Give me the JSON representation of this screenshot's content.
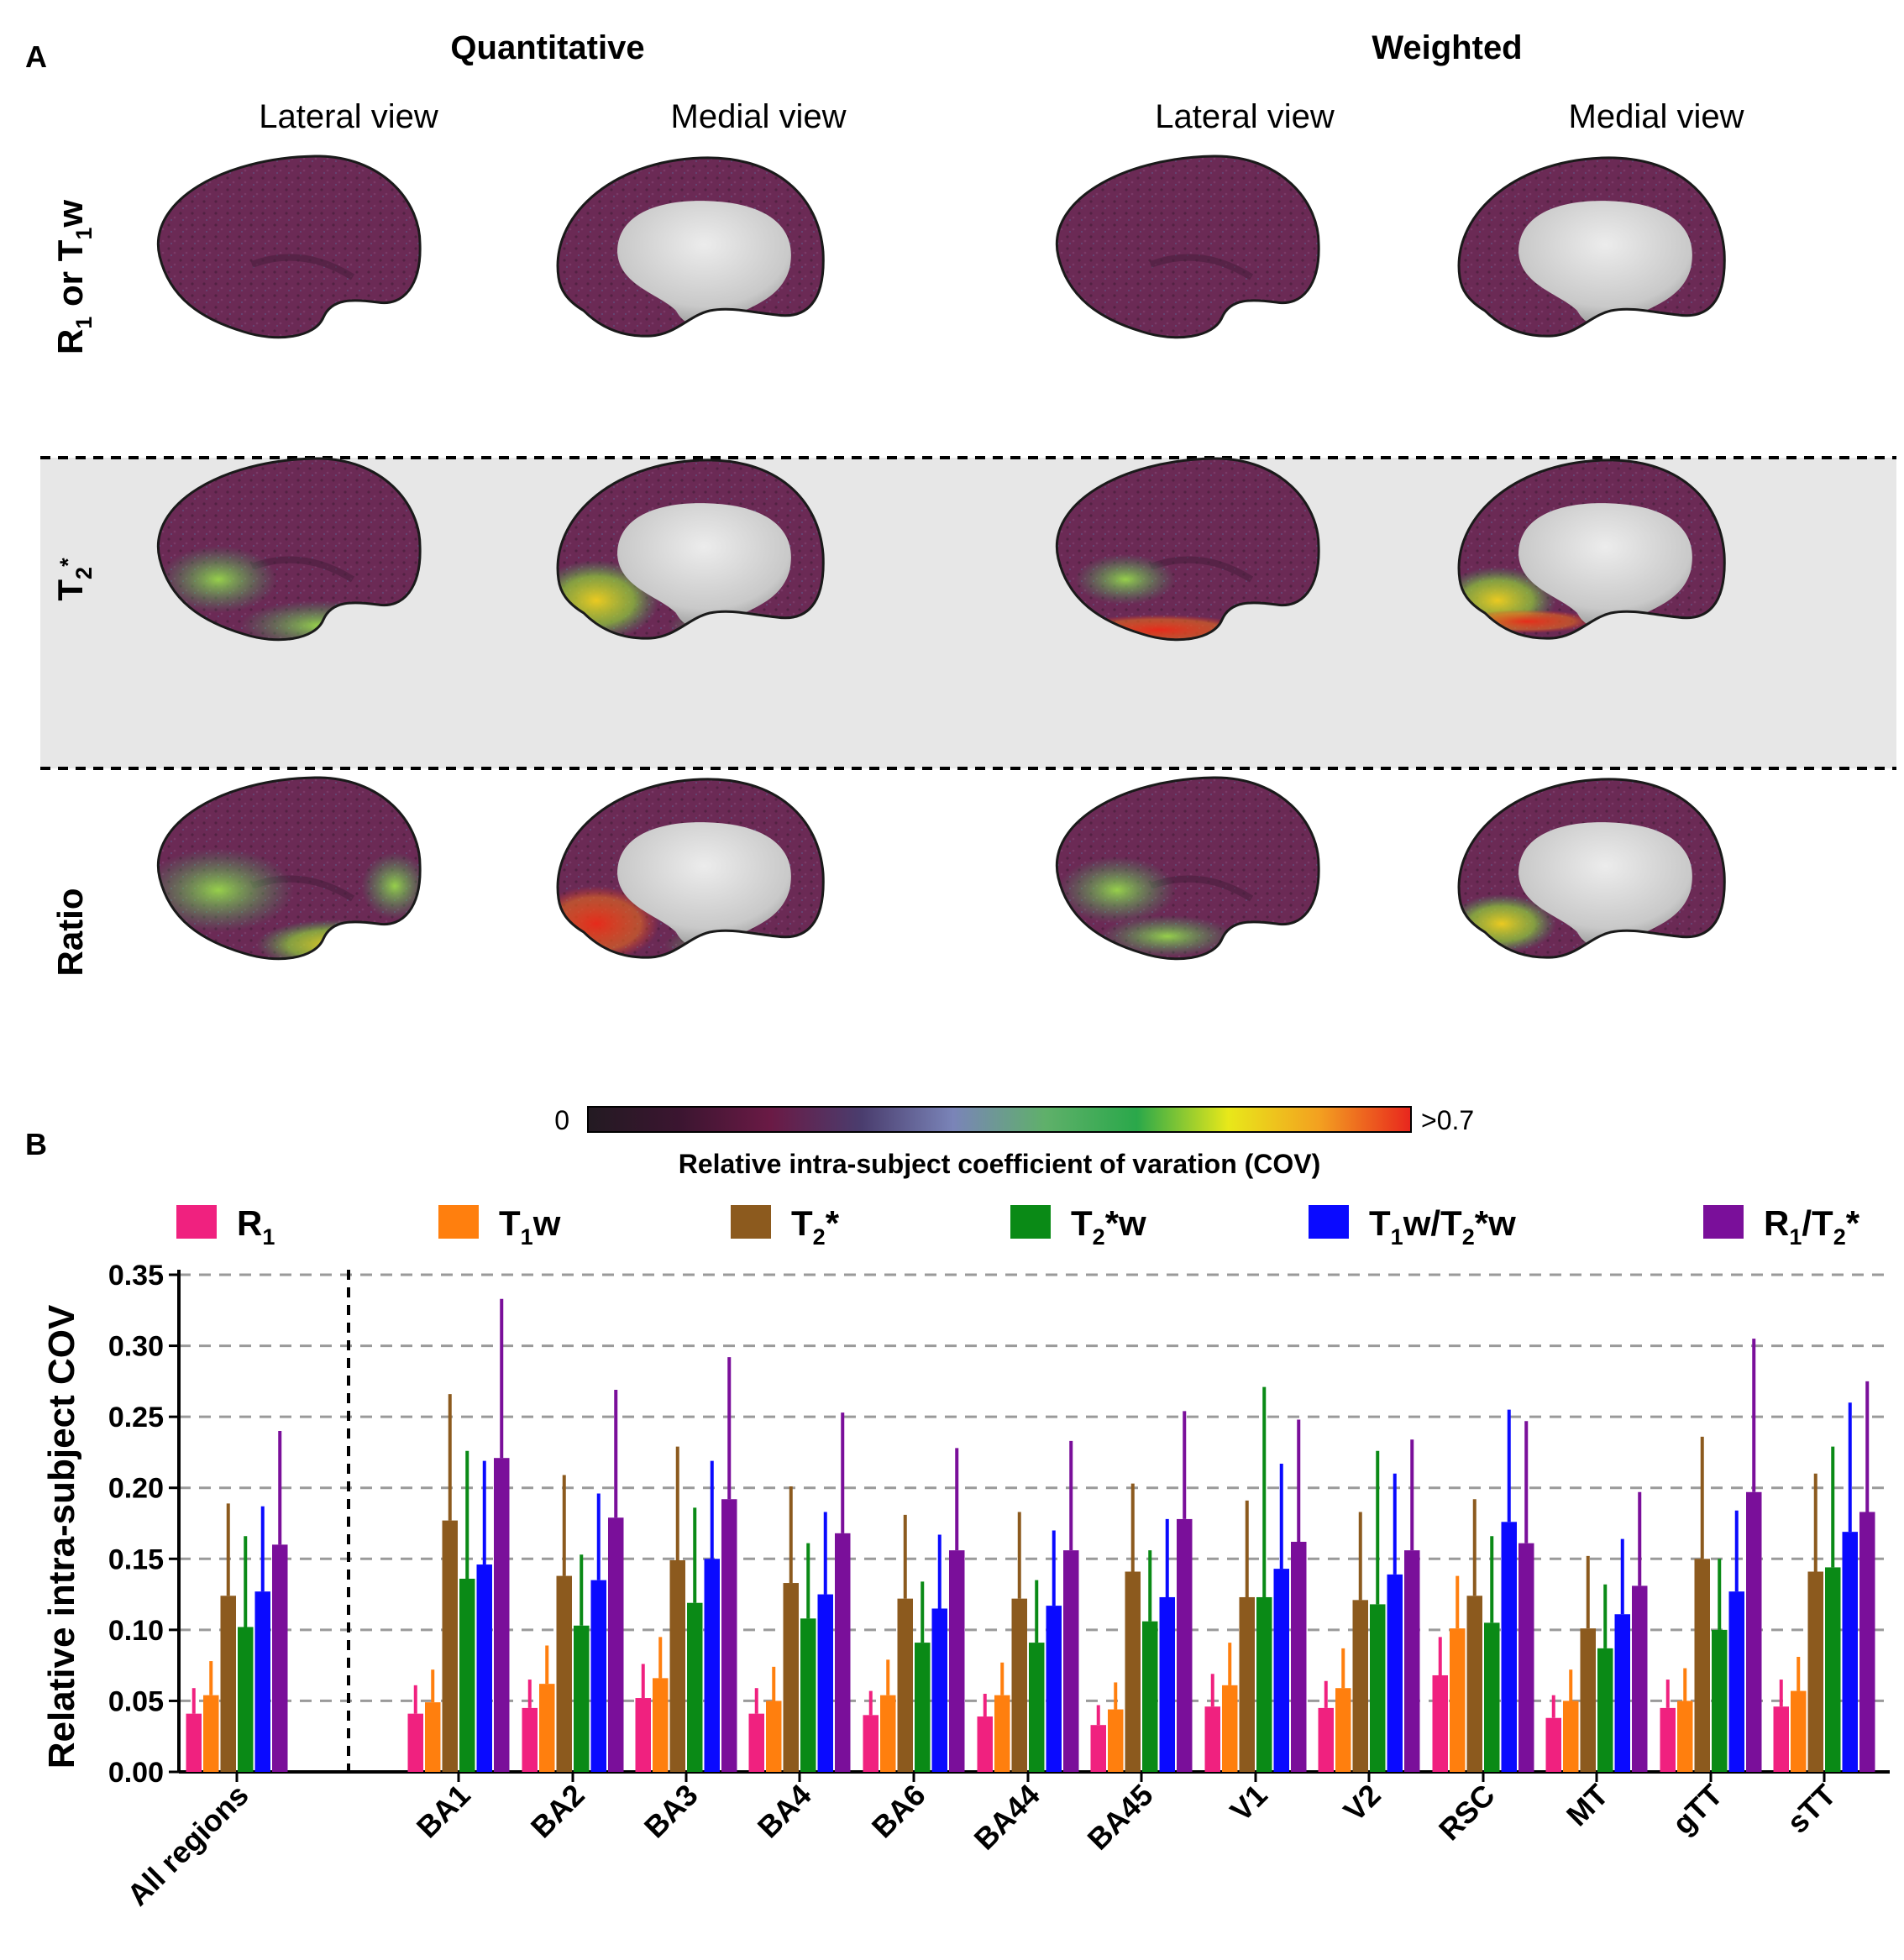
{
  "panel_a": {
    "label": "A",
    "groups": [
      "Quantitative",
      "Weighted"
    ],
    "views": [
      "Lateral view",
      "Medial view",
      "Lateral view",
      "Medial view"
    ],
    "rows": [
      {
        "name": "R1 or T1w",
        "parts": [
          [
            "R",
            "b"
          ],
          [
            "1",
            "sub"
          ],
          [
            " or T",
            "b"
          ],
          [
            "1",
            "sub"
          ],
          [
            "w",
            "b"
          ]
        ]
      },
      {
        "name": "T2*",
        "parts": [
          [
            "T",
            "b"
          ],
          [
            "2",
            "sub"
          ],
          [
            "*",
            "sup"
          ]
        ]
      },
      {
        "name": "Ratio",
        "parts": [
          [
            "Ratio",
            "b"
          ]
        ]
      }
    ],
    "colorbar": {
      "min_label": "0",
      "max_label": ">0.7",
      "title": "Relative intra-subject coefficient of varation (COV)",
      "stops": [
        "#231a22",
        "#3b1530",
        "#6a1a45",
        "#4a3d6e",
        "#7a84b8",
        "#5fb06a",
        "#2aa84a",
        "#e8e81a",
        "#f3a020",
        "#e8261e"
      ]
    },
    "surface_colors": {
      "base": "#6b2a55",
      "dark": "#4a1f3e",
      "inner": "#d6d6d6",
      "highlight_green": "#7cc94c",
      "highlight_yellow": "#e8dc2a",
      "highlight_red": "#e8301e"
    }
  },
  "chart_data": {
    "type": "bar",
    "panel_label": "B",
    "title": "",
    "xlabel": "",
    "ylabel": "Relative intra-subject COV",
    "ylim": [
      0,
      0.35
    ],
    "yticks": [
      "0.00",
      "0.05",
      "0.10",
      "0.15",
      "0.20",
      "0.25",
      "0.30",
      "0.35"
    ],
    "grid": "horizontal dashed",
    "legend_position": "top",
    "categories": [
      "All regions",
      "BA1",
      "BA2",
      "BA3",
      "BA4",
      "BA6",
      "BA44",
      "BA45",
      "V1",
      "V2",
      "RSC",
      "MT",
      "gTT",
      "sTT"
    ],
    "series": [
      {
        "name": "R1",
        "legend": [
          [
            "R",
            "n"
          ],
          [
            "1",
            "sub"
          ]
        ],
        "color": "#f0217f",
        "values": [
          0.041,
          0.041,
          0.045,
          0.052,
          0.041,
          0.04,
          0.039,
          0.033,
          0.046,
          0.045,
          0.068,
          0.038,
          0.045,
          0.046
        ],
        "errors": [
          0.059,
          0.061,
          0.065,
          0.076,
          0.059,
          0.057,
          0.055,
          0.047,
          0.069,
          0.064,
          0.095,
          0.054,
          0.065,
          0.065
        ]
      },
      {
        "name": "T1w",
        "legend": [
          [
            "T",
            "n"
          ],
          [
            "1",
            "sub"
          ],
          [
            "w",
            "n"
          ]
        ],
        "color": "#ff7f0e",
        "values": [
          0.054,
          0.049,
          0.062,
          0.066,
          0.05,
          0.054,
          0.054,
          0.044,
          0.061,
          0.059,
          0.101,
          0.05,
          0.05,
          0.057
        ],
        "errors": [
          0.078,
          0.072,
          0.089,
          0.095,
          0.074,
          0.079,
          0.077,
          0.063,
          0.091,
          0.087,
          0.138,
          0.072,
          0.073,
          0.081
        ]
      },
      {
        "name": "T2*",
        "legend": [
          [
            "T",
            "n"
          ],
          [
            "2",
            "sub"
          ],
          [
            "*",
            "n"
          ]
        ],
        "color": "#8c5a1e",
        "values": [
          0.124,
          0.177,
          0.138,
          0.149,
          0.133,
          0.122,
          0.122,
          0.141,
          0.123,
          0.121,
          0.124,
          0.101,
          0.15,
          0.141
        ],
        "errors": [
          0.189,
          0.266,
          0.209,
          0.229,
          0.201,
          0.181,
          0.183,
          0.203,
          0.191,
          0.183,
          0.192,
          0.152,
          0.236,
          0.21
        ]
      },
      {
        "name": "T2*w",
        "legend": [
          [
            "T",
            "n"
          ],
          [
            "2",
            "sub"
          ],
          [
            "*w",
            "n"
          ]
        ],
        "color": "#0a8a16",
        "values": [
          0.102,
          0.136,
          0.103,
          0.119,
          0.108,
          0.091,
          0.091,
          0.106,
          0.123,
          0.118,
          0.105,
          0.087,
          0.1,
          0.144
        ],
        "errors": [
          0.166,
          0.226,
          0.153,
          0.186,
          0.161,
          0.134,
          0.135,
          0.156,
          0.271,
          0.226,
          0.166,
          0.132,
          0.15,
          0.229
        ]
      },
      {
        "name": "T1w/T2*w",
        "legend": [
          [
            "T",
            "n"
          ],
          [
            "1",
            "sub"
          ],
          [
            "w/T",
            "n"
          ],
          [
            "2",
            "sub"
          ],
          [
            "*w",
            "n"
          ]
        ],
        "color": "#0a0aff",
        "values": [
          0.127,
          0.146,
          0.135,
          0.15,
          0.125,
          0.115,
          0.117,
          0.123,
          0.143,
          0.139,
          0.176,
          0.111,
          0.127,
          0.169
        ],
        "errors": [
          0.187,
          0.219,
          0.196,
          0.219,
          0.183,
          0.167,
          0.17,
          0.178,
          0.217,
          0.21,
          0.255,
          0.164,
          0.184,
          0.26
        ]
      },
      {
        "name": "R1/T2*",
        "legend": [
          [
            "R",
            "n"
          ],
          [
            "1",
            "sub"
          ],
          [
            "/T",
            "n"
          ],
          [
            "2",
            "sub"
          ],
          [
            "*",
            "n"
          ]
        ],
        "color": "#7a0f9a",
        "values": [
          0.16,
          0.221,
          0.179,
          0.192,
          0.168,
          0.156,
          0.156,
          0.178,
          0.162,
          0.156,
          0.161,
          0.131,
          0.197,
          0.183
        ],
        "errors": [
          0.24,
          0.333,
          0.269,
          0.292,
          0.253,
          0.228,
          0.233,
          0.254,
          0.248,
          0.234,
          0.247,
          0.197,
          0.305,
          0.275
        ]
      }
    ]
  }
}
